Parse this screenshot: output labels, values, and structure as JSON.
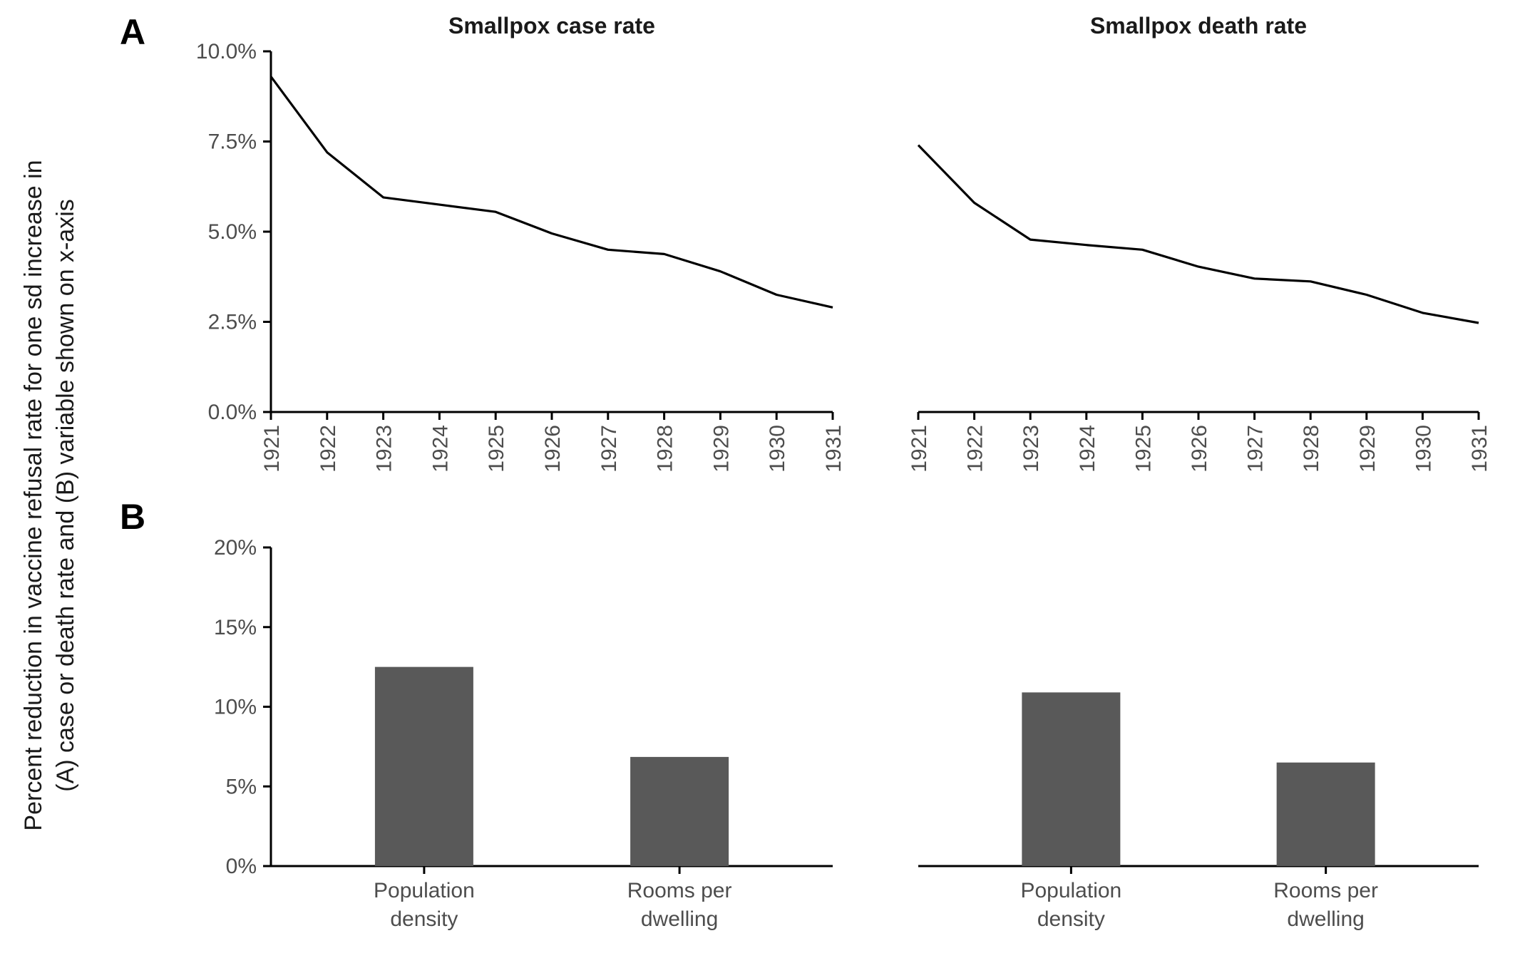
{
  "panel_labels": {
    "a": "A",
    "b": "B"
  },
  "ylabel_lines": [
    "Percent reduction in vaccine refusal rate for one sd increase in",
    "(A) case or death rate and (B) variable shown on x-axis"
  ],
  "colors": {
    "line": "#000000",
    "bar": "#595959",
    "tick_text": "#4d4d4d"
  },
  "chart_data": [
    {
      "type": "line",
      "panel": "A",
      "title": "Smallpox case rate",
      "x": [
        "1921",
        "1922",
        "1923",
        "1924",
        "1925",
        "1926",
        "1927",
        "1928",
        "1929",
        "1930",
        "1931"
      ],
      "values": [
        9.3,
        7.2,
        5.95,
        5.75,
        5.55,
        4.95,
        4.5,
        4.38,
        3.9,
        3.25,
        2.9
      ],
      "y_unit": "%",
      "ylim": [
        0,
        10
      ],
      "yticks": [
        "0.0%",
        "2.5%",
        "5.0%",
        "7.5%",
        "10.0%"
      ],
      "ytick_values": [
        0,
        2.5,
        5,
        7.5,
        10
      ],
      "x_tick_rotation": -90,
      "grid": false
    },
    {
      "type": "line",
      "panel": "A",
      "title": "Smallpox death rate",
      "x": [
        "1921",
        "1922",
        "1923",
        "1924",
        "1925",
        "1926",
        "1927",
        "1928",
        "1929",
        "1930",
        "1931"
      ],
      "values": [
        7.4,
        5.8,
        4.78,
        4.63,
        4.5,
        4.03,
        3.7,
        3.62,
        3.25,
        2.75,
        2.47
      ],
      "y_unit": "%",
      "ylim": [
        0,
        10
      ],
      "x_tick_rotation": -90,
      "grid": false
    },
    {
      "type": "bar",
      "panel": "B",
      "categories": [
        [
          "Population",
          "density"
        ],
        [
          "Rooms per",
          "dwelling"
        ]
      ],
      "values": [
        12.5,
        6.85
      ],
      "y_unit": "%",
      "ylim": [
        0,
        20
      ],
      "yticks": [
        "0%",
        "5%",
        "10%",
        "15%",
        "20%"
      ],
      "ytick_values": [
        0,
        5,
        10,
        15,
        20
      ],
      "grid": false
    },
    {
      "type": "bar",
      "panel": "B",
      "categories": [
        [
          "Population",
          "density"
        ],
        [
          "Rooms per",
          "dwelling"
        ]
      ],
      "values": [
        10.9,
        6.5
      ],
      "y_unit": "%",
      "ylim": [
        0,
        20
      ],
      "grid": false
    }
  ]
}
